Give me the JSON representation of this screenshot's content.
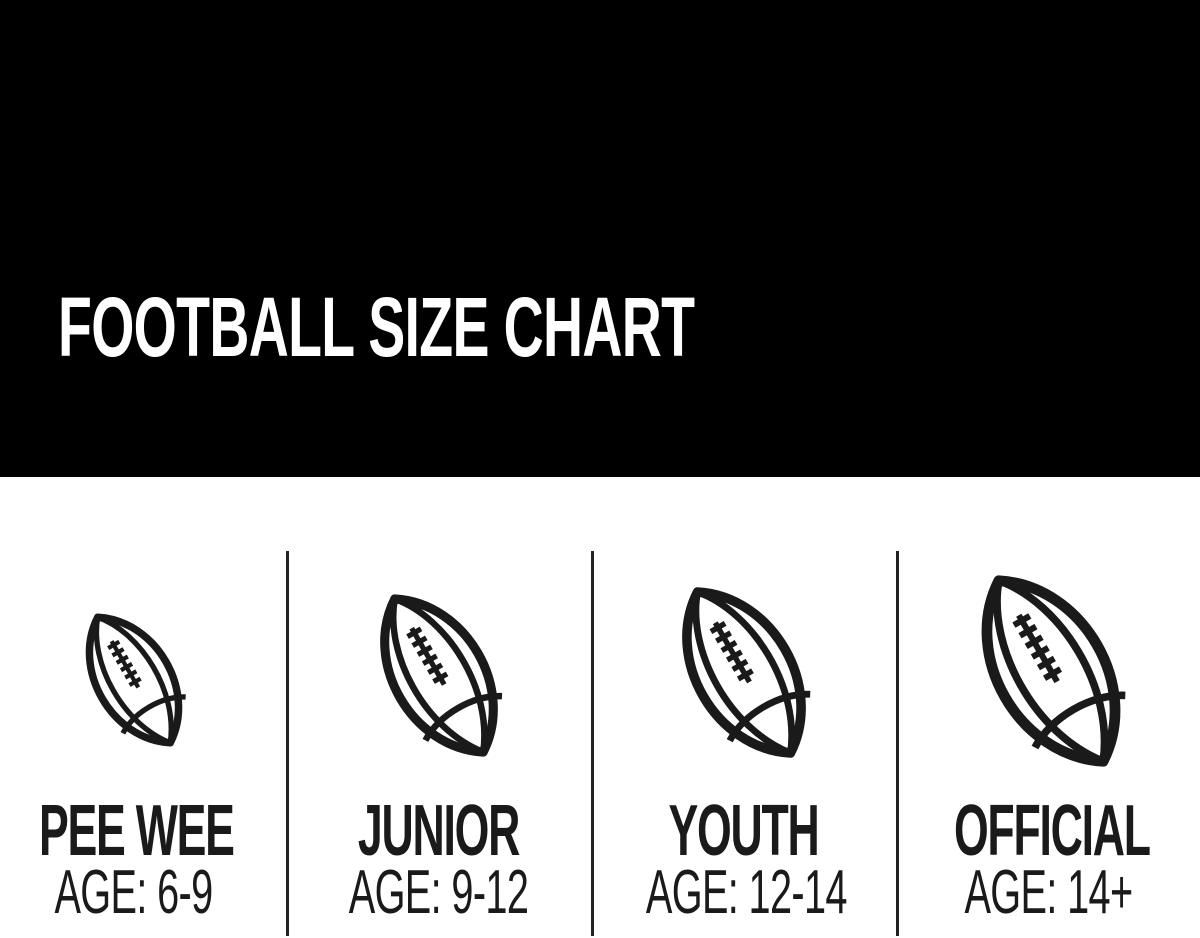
{
  "header": {
    "title": "FOOTBALL SIZE CHART"
  },
  "sizes": [
    {
      "name": "PEE WEE",
      "age": "AGE: 6-9"
    },
    {
      "name": "JUNIOR",
      "age": "AGE: 9-12"
    },
    {
      "name": "YOUTH",
      "age": "AGE: 12-14"
    },
    {
      "name": "OFFICIAL",
      "age": "AGE: 14+"
    }
  ],
  "colors": {
    "band": "#000000",
    "ink": "#1a1a1a",
    "background": "#ffffff"
  },
  "icons": [
    "football-icon"
  ]
}
